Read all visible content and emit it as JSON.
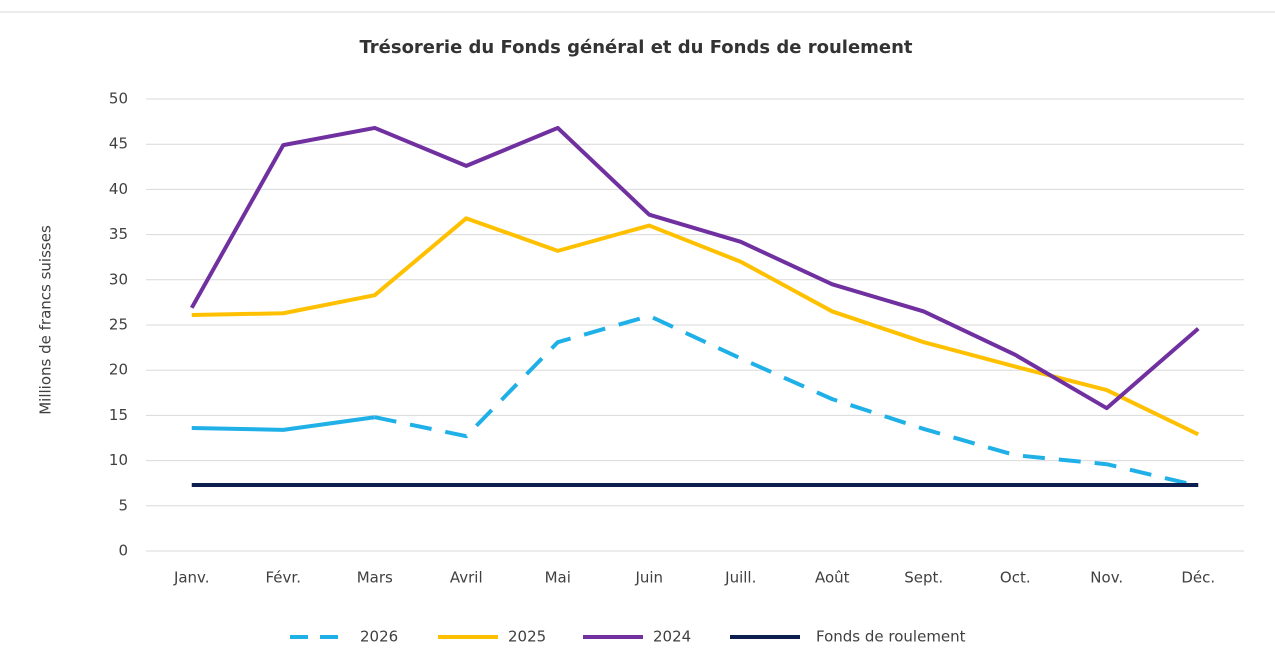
{
  "chart_data": {
    "type": "line",
    "title": "Trésorerie du Fonds général et du Fonds de roulement",
    "y_label": "Millions de francs suisses",
    "categories": [
      "Janv.",
      "Févr.",
      "Mars",
      "Avril",
      "Mai",
      "Juin",
      "Juill.",
      "Août",
      "Sept.",
      "Oct.",
      "Nov.",
      "Déc."
    ],
    "series": [
      {
        "name": "2026",
        "color": "#1fb0e8",
        "dashed_from": 2,
        "values": [
          13.6,
          13.4,
          14.8,
          12.7,
          23.1,
          26.0,
          21.3,
          16.8,
          13.5,
          10.6,
          9.6,
          7.2
        ]
      },
      {
        "name": "2025",
        "color": "#ffc000",
        "values": [
          26.1,
          26.3,
          28.3,
          36.8,
          33.2,
          36.0,
          32.0,
          26.5,
          23.1,
          20.4,
          17.8,
          12.9
        ]
      },
      {
        "name": "2024",
        "color": "#7030a0",
        "values": [
          26.9,
          44.9,
          46.8,
          42.6,
          46.8,
          37.2,
          34.2,
          29.5,
          26.5,
          21.7,
          15.8,
          24.6
        ]
      },
      {
        "name": "Fonds de roulement",
        "color": "#0d1f4f",
        "values": [
          7.3,
          7.3,
          7.3,
          7.3,
          7.3,
          7.3,
          7.3,
          7.3,
          7.3,
          7.3,
          7.3,
          7.3
        ]
      }
    ],
    "ylim": [
      0,
      50
    ],
    "yticks": [
      0,
      5,
      10,
      15,
      20,
      25,
      30,
      35,
      40,
      45,
      50
    ],
    "grid": true,
    "legend": "bottom"
  }
}
